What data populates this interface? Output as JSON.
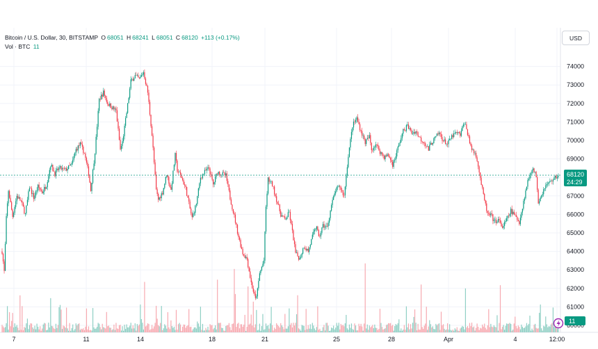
{
  "legend": {
    "symbol": "Bitcoin / U.S. Dollar, 30, BITSTAMP",
    "o_label": "O",
    "o_value": "68051",
    "h_label": "H",
    "h_value": "68241",
    "l_label": "L",
    "l_value": "68051",
    "c_label": "C",
    "c_value": "68120",
    "change": "+113 (+0.17%)",
    "vol_label": "Vol · BTC",
    "vol_value": "11"
  },
  "currency_button": "USD",
  "last_price": {
    "value": "68120",
    "countdown": "24:29",
    "color": "#089981"
  },
  "volume_badge": {
    "value": "11",
    "color": "#089981"
  },
  "colors": {
    "up": "#089981",
    "down": "#f23645",
    "vol_up": "#8fcfc4",
    "vol_down": "#f7a9b0"
  },
  "chart_data": {
    "type": "candlestick",
    "timeframe": "30",
    "x_ticks": [
      "7",
      "11",
      "14",
      "18",
      "21",
      "25",
      "28",
      "Apr",
      "4",
      "12:00"
    ],
    "y_ticks": [
      60000,
      61000,
      62000,
      63000,
      64000,
      65000,
      66000,
      67000,
      68000,
      69000,
      70000,
      71000,
      72000,
      73000,
      74000
    ],
    "ylim": [
      59700,
      74600
    ],
    "close_path": [
      [
        0,
        64000
      ],
      [
        2,
        62900
      ],
      [
        4,
        65800
      ],
      [
        6,
        67300
      ],
      [
        10,
        65900
      ],
      [
        14,
        67000
      ],
      [
        18,
        66700
      ],
      [
        22,
        66000
      ],
      [
        26,
        67500
      ],
      [
        30,
        66900
      ],
      [
        34,
        67500
      ],
      [
        38,
        67200
      ],
      [
        42,
        67600
      ],
      [
        46,
        68700
      ],
      [
        50,
        68200
      ],
      [
        54,
        68500
      ],
      [
        60,
        68400
      ],
      [
        66,
        68700
      ],
      [
        70,
        69500
      ],
      [
        74,
        69800
      ],
      [
        78,
        69300
      ],
      [
        82,
        68200
      ],
      [
        84,
        67300
      ],
      [
        88,
        69400
      ],
      [
        92,
        72200
      ],
      [
        96,
        72600
      ],
      [
        100,
        72000
      ],
      [
        104,
        71800
      ],
      [
        108,
        71600
      ],
      [
        112,
        69500
      ],
      [
        114,
        69900
      ],
      [
        118,
        71500
      ],
      [
        122,
        73200
      ],
      [
        126,
        73500
      ],
      [
        130,
        73300
      ],
      [
        134,
        73700
      ],
      [
        138,
        72600
      ],
      [
        142,
        70300
      ],
      [
        146,
        67300
      ],
      [
        148,
        66800
      ],
      [
        152,
        67200
      ],
      [
        156,
        68200
      ],
      [
        160,
        67300
      ],
      [
        164,
        69200
      ],
      [
        166,
        68400
      ],
      [
        170,
        68000
      ],
      [
        174,
        67400
      ],
      [
        178,
        66300
      ],
      [
        180,
        65800
      ],
      [
        184,
        66600
      ],
      [
        188,
        68000
      ],
      [
        192,
        68300
      ],
      [
        196,
        68500
      ],
      [
        200,
        67600
      ],
      [
        204,
        68300
      ],
      [
        208,
        68200
      ],
      [
        212,
        68100
      ],
      [
        216,
        66900
      ],
      [
        220,
        65900
      ],
      [
        224,
        64800
      ],
      [
        228,
        63900
      ],
      [
        232,
        63600
      ],
      [
        236,
        62300
      ],
      [
        240,
        61400
      ],
      [
        242,
        61900
      ],
      [
        244,
        62800
      ],
      [
        248,
        63500
      ],
      [
        250,
        66400
      ],
      [
        252,
        67900
      ],
      [
        256,
        67600
      ],
      [
        260,
        66800
      ],
      [
        264,
        66000
      ],
      [
        268,
        65700
      ],
      [
        272,
        66100
      ],
      [
        276,
        64700
      ],
      [
        278,
        63900
      ],
      [
        282,
        63600
      ],
      [
        286,
        64300
      ],
      [
        290,
        64000
      ],
      [
        294,
        64800
      ],
      [
        298,
        65400
      ],
      [
        300,
        64700
      ],
      [
        304,
        65400
      ],
      [
        308,
        65300
      ],
      [
        312,
        66500
      ],
      [
        316,
        67300
      ],
      [
        320,
        67500
      ],
      [
        324,
        67000
      ],
      [
        326,
        68100
      ],
      [
        328,
        69200
      ],
      [
        332,
        70800
      ],
      [
        336,
        71200
      ],
      [
        340,
        70500
      ],
      [
        344,
        69900
      ],
      [
        348,
        70200
      ],
      [
        350,
        69500
      ],
      [
        354,
        69800
      ],
      [
        358,
        69400
      ],
      [
        362,
        69100
      ],
      [
        366,
        69200
      ],
      [
        370,
        68700
      ],
      [
        372,
        69000
      ],
      [
        376,
        69800
      ],
      [
        380,
        70500
      ],
      [
        384,
        70800
      ],
      [
        388,
        70400
      ],
      [
        392,
        70500
      ],
      [
        396,
        70100
      ],
      [
        400,
        69900
      ],
      [
        404,
        69500
      ],
      [
        406,
        69800
      ],
      [
        410,
        70100
      ],
      [
        414,
        70400
      ],
      [
        418,
        70000
      ],
      [
        422,
        69800
      ],
      [
        426,
        70200
      ],
      [
        430,
        70400
      ],
      [
        434,
        70300
      ],
      [
        438,
        71000
      ],
      [
        442,
        70200
      ],
      [
        444,
        69600
      ],
      [
        448,
        69300
      ],
      [
        450,
        69000
      ],
      [
        452,
        68300
      ],
      [
        456,
        67000
      ],
      [
        460,
        66000
      ],
      [
        464,
        65900
      ],
      [
        466,
        65600
      ],
      [
        470,
        65700
      ],
      [
        474,
        65300
      ],
      [
        478,
        65700
      ],
      [
        482,
        66200
      ],
      [
        486,
        65900
      ],
      [
        490,
        65600
      ],
      [
        492,
        66100
      ],
      [
        494,
        66700
      ],
      [
        498,
        67800
      ],
      [
        502,
        68500
      ],
      [
        506,
        68100
      ],
      [
        508,
        66700
      ],
      [
        512,
        67200
      ],
      [
        514,
        67500
      ],
      [
        518,
        67700
      ],
      [
        522,
        67900
      ],
      [
        527,
        68120
      ]
    ]
  }
}
